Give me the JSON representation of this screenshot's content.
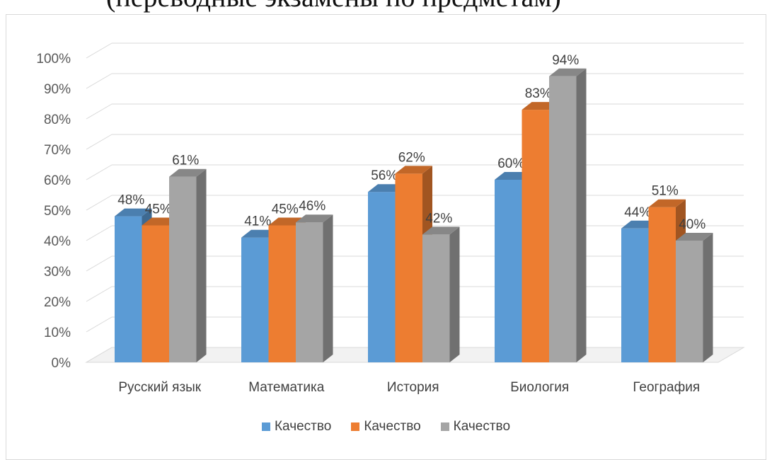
{
  "header_text": "(переводные экзамены по предметам)",
  "chart_data": {
    "type": "bar",
    "title": "",
    "xlabel": "",
    "ylabel": "",
    "ylim": [
      0,
      100
    ],
    "y_ticks": [
      "0%",
      "10%",
      "20%",
      "30%",
      "40%",
      "50%",
      "60%",
      "70%",
      "80%",
      "90%",
      "100%"
    ],
    "categories": [
      "Русский язык",
      "Математика",
      "История",
      "Биология",
      "География"
    ],
    "series": [
      {
        "name": "Качество",
        "color": "#5b9bd5",
        "values": [
          48,
          41,
          56,
          60,
          44
        ],
        "labels": [
          "48%",
          "41%",
          "56%",
          "60%",
          "44%"
        ]
      },
      {
        "name": "Качество",
        "color": "#ed7d31",
        "values": [
          45,
          45,
          62,
          83,
          51
        ],
        "labels": [
          "45%",
          "45%",
          "62%",
          "83%",
          "51%"
        ]
      },
      {
        "name": "Качество",
        "color": "#a5a5a5",
        "values": [
          61,
          46,
          42,
          94,
          40
        ],
        "labels": [
          "61%",
          "46%",
          "42%",
          "94%",
          "40%"
        ]
      }
    ],
    "grid": true,
    "legend_position": "bottom"
  }
}
